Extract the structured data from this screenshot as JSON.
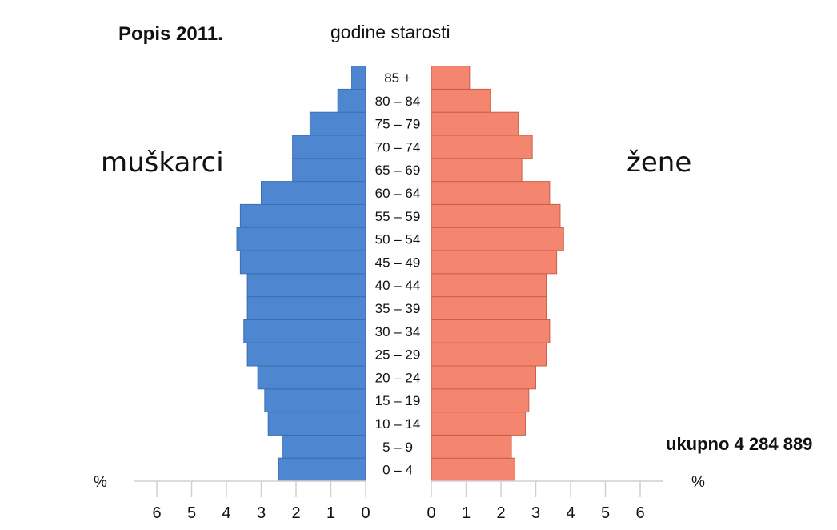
{
  "title": "Popis 2011.",
  "subtitle": "godine starosti",
  "left_label": "muškarci",
  "right_label": "žene",
  "total_label": "ukupno 4 284 889",
  "unit_left": "%",
  "unit_right": "%",
  "chart_data": {
    "type": "bar",
    "orientation": "horizontal-population-pyramid",
    "categories": [
      "0 – 4",
      "5 – 9",
      "10 – 14",
      "15 – 19",
      "20 – 24",
      "25 – 29",
      "30 – 34",
      "35 – 39",
      "40 – 44",
      "45 – 49",
      "50 – 54",
      "55 – 59",
      "60 – 64",
      "65 – 69",
      "70 – 74",
      "75 – 79",
      "80 – 84",
      "85 +"
    ],
    "series": [
      {
        "name": "muškarci",
        "color": "#4f86d0",
        "values": [
          2.5,
          2.4,
          2.8,
          2.9,
          3.1,
          3.4,
          3.5,
          3.4,
          3.4,
          3.6,
          3.7,
          3.6,
          3.0,
          2.1,
          2.1,
          1.6,
          0.8,
          0.4
        ]
      },
      {
        "name": "žene",
        "color": "#f4866f",
        "values": [
          2.4,
          2.3,
          2.7,
          2.8,
          3.0,
          3.3,
          3.4,
          3.3,
          3.3,
          3.6,
          3.8,
          3.7,
          3.4,
          2.6,
          2.9,
          2.5,
          1.7,
          1.1
        ]
      }
    ],
    "xlim": [
      0,
      7
    ],
    "ticks": [
      "0",
      "1",
      "2",
      "3",
      "4",
      "5",
      "6"
    ],
    "xlabel": "%",
    "ylabel": "godine starosti"
  }
}
